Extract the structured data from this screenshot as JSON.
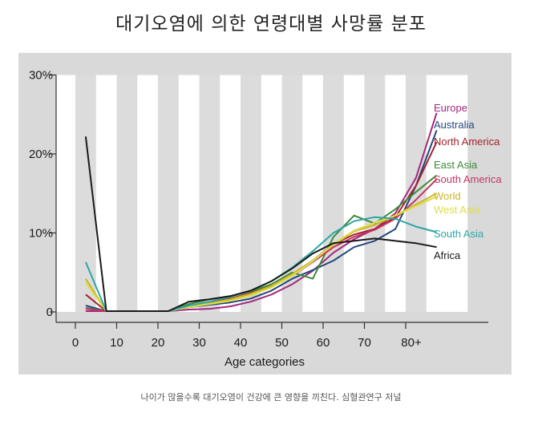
{
  "header": {
    "title": "대기오염에 의한 연령대별 사망률 분포"
  },
  "footer": {
    "caption": "나이가 많을수록 대기오염이 건강에 큰 영향을 끼친다. 심혈관연구 저널"
  },
  "chart_data": {
    "type": "line",
    "title": "대기오염에 의한 연령대별 사망률 분포",
    "xlabel": "Age categories",
    "ylabel": "",
    "x": [
      2.5,
      7.5,
      12.5,
      17.5,
      22.5,
      27.5,
      32.5,
      37.5,
      42.5,
      47.5,
      52.5,
      57.5,
      62.5,
      67.5,
      72.5,
      77.5,
      82.5,
      87.5
    ],
    "xlim": [
      0,
      100
    ],
    "ylim": [
      0,
      30
    ],
    "x_ticks": [
      "0",
      "10",
      "20",
      "30",
      "40",
      "50",
      "60",
      "70",
      "80+"
    ],
    "y_ticks": [
      "0",
      "10%",
      "20%",
      "30%"
    ],
    "grid": "alternating vertical bands",
    "legend": "right-side labels",
    "series": [
      {
        "name": "Europe",
        "color": "#a3297e",
        "values": [
          0.1,
          0.1,
          0.1,
          0.1,
          0.1,
          0.3,
          0.4,
          0.7,
          1.3,
          2.2,
          3.5,
          5.2,
          7.5,
          9.2,
          10.5,
          12.5,
          17,
          25.2
        ]
      },
      {
        "name": "Australia",
        "color": "#23477c",
        "values": [
          0.8,
          0.1,
          0.1,
          0.1,
          0.1,
          0.6,
          0.9,
          1.2,
          1.7,
          2.7,
          4.2,
          5.3,
          6.5,
          8.2,
          9,
          10.5,
          16,
          23
        ]
      },
      {
        "name": "North America",
        "color": "#a3242c",
        "values": [
          2.2,
          0.1,
          0.1,
          0.1,
          0.1,
          0.8,
          1.2,
          1.7,
          2.4,
          3.4,
          4.8,
          6.5,
          8.6,
          9.8,
          10.5,
          12,
          16,
          21.5
        ]
      },
      {
        "name": "East Asia",
        "color": "#3e8b3a",
        "values": [
          0.5,
          0.1,
          0.1,
          0.1,
          0.1,
          1,
          1.6,
          2,
          2.6,
          3.5,
          5,
          4.2,
          9.5,
          12.2,
          11.2,
          13,
          15.2,
          17.3
        ]
      },
      {
        "name": "South America",
        "color": "#c63562",
        "values": [
          0.4,
          0.1,
          0.1,
          0.1,
          0.1,
          0.7,
          1.1,
          1.5,
          2.1,
          3.2,
          4.6,
          6.3,
          8.2,
          9.5,
          10.4,
          11.8,
          14.2,
          16.8
        ]
      },
      {
        "name": "World",
        "color": "#c9b52b",
        "values": [
          4.2,
          0.1,
          0.1,
          0.1,
          0.1,
          0.7,
          1.1,
          1.6,
          2.3,
          3.3,
          4.8,
          6.5,
          8.5,
          10.2,
          11,
          12.2,
          13.6,
          15
        ]
      },
      {
        "name": "West Asia",
        "color": "#dede46",
        "values": [
          3.7,
          0.1,
          0.1,
          0.1,
          0.1,
          0.6,
          1,
          1.4,
          2.1,
          3.1,
          4.6,
          6.4,
          8.6,
          10.3,
          11.3,
          12.2,
          13.4,
          14.6
        ]
      },
      {
        "name": "South Asia",
        "color": "#2ea5a5",
        "values": [
          6.3,
          0.1,
          0.1,
          0.1,
          0.1,
          0.8,
          1.3,
          1.9,
          2.7,
          3.9,
          5.6,
          7.7,
          10,
          11.5,
          12,
          11.8,
          10.8,
          10.1
        ]
      },
      {
        "name": "Africa",
        "color": "#1a1a1a",
        "values": [
          22.2,
          0.1,
          0.1,
          0.1,
          0.1,
          1.3,
          1.6,
          2,
          2.7,
          3.9,
          5.5,
          7.4,
          8.7,
          9,
          9.3,
          9,
          8.7,
          8.2
        ]
      }
    ]
  }
}
